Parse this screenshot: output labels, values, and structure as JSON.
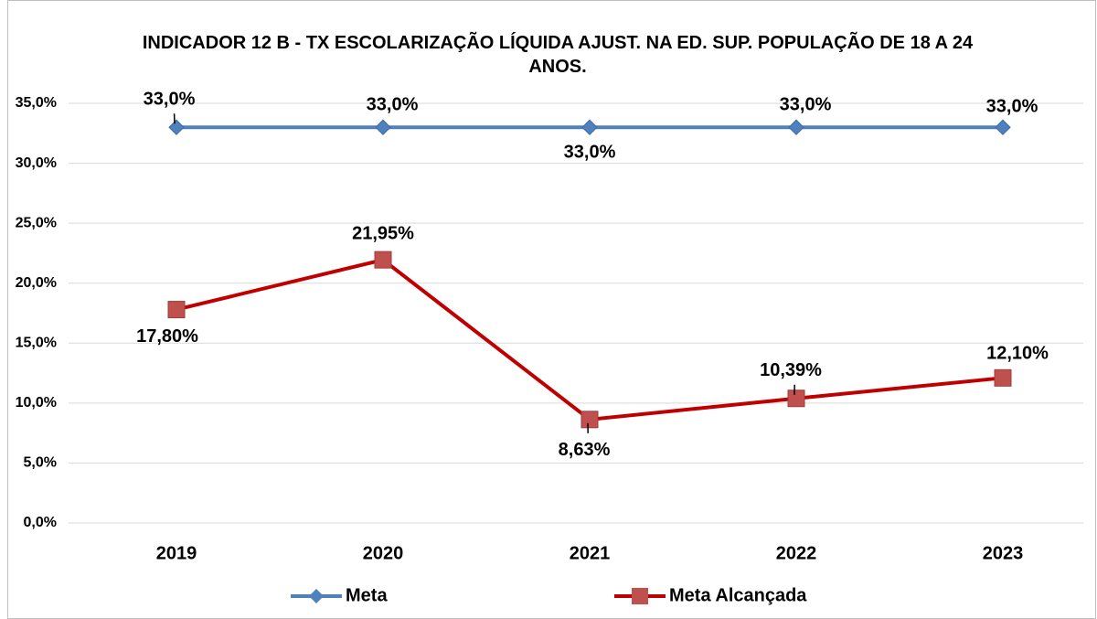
{
  "chart_data": {
    "type": "line",
    "title": "INDICADOR 12 B - TX ESCOLARIZAÇÃO LÍQUIDA AJUST. NA ED. SUP. POPULAÇÃO DE 18 A 24 ANOS.",
    "categories": [
      "2019",
      "2020",
      "2021",
      "2022",
      "2023"
    ],
    "series": [
      {
        "name": "Meta",
        "color": "#4f81bd",
        "marker": "diamond",
        "values": [
          33,
          33,
          33,
          33,
          33
        ],
        "value_labels": [
          "33,0%",
          "33,0%",
          "33,0%",
          "33,0%",
          "33,0%"
        ]
      },
      {
        "name": "Meta Alcançada",
        "color": "#c00000",
        "marker_color": "#c0504d",
        "marker": "square",
        "values": [
          17.8,
          21.95,
          8.63,
          10.39,
          12.1
        ],
        "value_labels": [
          "17,80%",
          "21,95%",
          "8,63%",
          "10,39%",
          "12,10%"
        ]
      }
    ],
    "ylim": [
      0,
      35
    ],
    "yticks": [
      {
        "value": 0,
        "label": "0,0%"
      },
      {
        "value": 5,
        "label": "5,0%"
      },
      {
        "value": 10,
        "label": "10,0%"
      },
      {
        "value": 15,
        "label": "15,0%"
      },
      {
        "value": 20,
        "label": "20,0%"
      },
      {
        "value": 25,
        "label": "25,0%"
      },
      {
        "value": 30,
        "label": "30,0%"
      },
      {
        "value": 35,
        "label": "35,0%"
      }
    ],
    "grid": true,
    "legend": "bottom"
  }
}
